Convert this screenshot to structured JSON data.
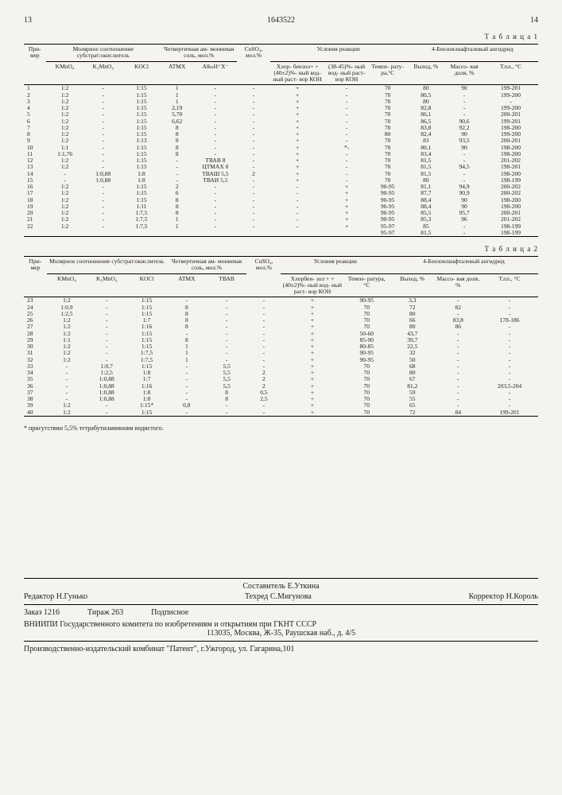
{
  "pageLeft": "13",
  "patent": "1643522",
  "pageRight": "14",
  "table1Label": "Т а б л и ц а  1",
  "table2Label": "Т а б л и ц а  2",
  "footnote": "* присутствии 5,5% тетрабутиламмония иодистого.",
  "t1": {
    "h_primer": "При-\nмер",
    "h_mol": "Молярное соотношение\nсубстрат:окислитель",
    "h_amm": "Четвертичная ам-\nмониевая соль,\nмол.%",
    "h_cuso4": "CuSO₄,\nмол.%",
    "h_cond": "Условия реакции",
    "h_prod": "4-Бензоилнафталевый ангидрид",
    "sh_kmno4": "KMnO₄",
    "sh_k2mno4": "K₂MnO₄",
    "sh_kocl": "KOCl",
    "sh_atmk": "АТМХ",
    "sh_alk": "AlkₙH⁺X⁻",
    "sh_c1": "Хлор-\nбензол+\n+(40±2)%-\nный вод-\nный раст-\nвор КОН",
    "sh_c2": "(38-45)%-\nный вод-\nный раст-\nвор КОН",
    "sh_temp": "Темпе-\nрату-\nра,°С",
    "sh_yield": "Выход,\n%",
    "sh_mass": "Массо-\nвая\nдоля,\n%",
    "sh_tpl": "Т.пл.,\n°С",
    "rows": [
      [
        "1",
        "1:2",
        "-",
        "1:15",
        "1",
        "-",
        "-",
        "+",
        "-",
        "70",
        "80",
        "90",
        "199-201"
      ],
      [
        "2",
        "1:2",
        "-",
        "1:15",
        "1",
        "-",
        "-",
        "+",
        "-",
        "70",
        "80,5",
        "-",
        "199-200"
      ],
      [
        "3",
        "1:2",
        "-",
        "1:15",
        "1",
        "-",
        "-",
        "+",
        "-",
        "70",
        "80",
        "-",
        "-"
      ],
      [
        "4",
        "1:2",
        "-",
        "1:15",
        "2,19",
        "-",
        "-",
        "+",
        "-",
        "70",
        "82,8",
        "-",
        "199-200"
      ],
      [
        "5",
        "1:2",
        "-",
        "1:15",
        "5,70",
        "-",
        "-",
        "+",
        "-",
        "70",
        "86,1",
        "-",
        "200-201"
      ],
      [
        "6",
        "1:2",
        "-",
        "1:15",
        "6,62",
        "-",
        "-",
        "+",
        "-",
        "70",
        "86,5",
        "90,6",
        "199-201"
      ],
      [
        "7",
        "1:2",
        "-",
        "1:15",
        "8",
        "-",
        "-",
        "+",
        "-",
        "70",
        "83,8",
        "92,2",
        "198-200"
      ],
      [
        "8",
        "1:2",
        "-",
        "1:15",
        "8",
        "-",
        "-",
        "+",
        "-",
        "80",
        "82,4",
        "90",
        "199-200"
      ],
      [
        "9",
        "1:2",
        "-",
        "1:13",
        "8",
        "-",
        "-",
        "+",
        "-",
        "70",
        "83",
        "93,5",
        "200-201"
      ],
      [
        "10",
        "1:1",
        "-",
        "1:15",
        "8",
        "-",
        "-",
        "+",
        "*-",
        "70",
        "80,1",
        "90",
        "198-200"
      ],
      [
        "11",
        "1:1,76",
        "-",
        "1:15",
        "8",
        "-",
        "-",
        "+",
        "-",
        "70",
        "83,4",
        "-",
        "198-200"
      ],
      [
        "12",
        "1:2",
        "-",
        "1:15",
        "-",
        "ТВАВ 8",
        "-",
        "+",
        "-",
        "70",
        "81,5",
        "-",
        "201-202"
      ],
      [
        "13",
        "1:2",
        "-",
        "1:15",
        "-",
        "ЦТМАХ 8",
        "-",
        "+",
        "-",
        "70",
        "81,5",
        "94,5",
        "198-201"
      ],
      [
        "14",
        "-",
        "1:0,88",
        "1:8",
        "-",
        "ТВАШ 5,5",
        "2",
        "+",
        "-",
        "70",
        "81,5",
        "-",
        "198-200"
      ],
      [
        "15",
        "-",
        "1:0,88",
        "1:8",
        "-",
        "ТВАИ 5,5",
        "-",
        "+",
        "-",
        "70",
        "80",
        "-",
        "198-199"
      ],
      [
        "16",
        "1:2",
        "-",
        "1:15",
        "2",
        "-",
        "-",
        "-",
        "+",
        "90-95",
        "81,1",
        "94,9",
        "200-202"
      ],
      [
        "17",
        "1:2",
        "-",
        "1:15",
        "6",
        "-",
        "-",
        "-",
        "+",
        "90-95",
        "87,7",
        "90,9",
        "200-202"
      ],
      [
        "18",
        "1:2",
        "-",
        "1:15",
        "8",
        "-",
        "-",
        "-",
        "+",
        "90-95",
        "88,4",
        "90",
        "198-200"
      ],
      [
        "19",
        "1:2",
        "-",
        "1:11",
        "8",
        "-",
        "-",
        "-",
        "+",
        "90-95",
        "88,4",
        "90",
        "198-200"
      ],
      [
        "20",
        "1:2",
        "-",
        "1:7,5",
        "8",
        "-",
        "-",
        "-",
        "+",
        "90-95",
        "85,5",
        "95,7",
        "200-201"
      ],
      [
        "21",
        "1:2",
        "-",
        "1:7,5",
        "1",
        "-",
        "-",
        "-",
        "+",
        "90-95",
        "85,3",
        "96",
        "201-202"
      ],
      [
        "22",
        "1:2",
        "-",
        "1:7,5",
        "1",
        "-",
        "-",
        "-",
        "+",
        "95-97",
        "85",
        "-",
        "198-199"
      ],
      [
        "",
        "",
        "",
        "",
        "",
        "",
        "",
        "",
        "",
        "95-97",
        "81,5",
        "-",
        "198-199"
      ]
    ]
  },
  "t2": {
    "h_primer": "При-\nмер",
    "h_mol": "Молярное соотношение\nсубстрат:окислитель",
    "h_amm": "Четвертичная ам-\nмониевая соль,\nмол.%",
    "h_cuso4": "CuSO₄,\nмол.%",
    "h_cond": "Условия реакции",
    "h_prod": "4-Бензоилнафталевый ангидрид",
    "sh_kmno4": "KMnO₄",
    "sh_k2mno4": "K₂MnO₄",
    "sh_kocl": "KOCl",
    "sh_atmk": "АТМХ",
    "sh_tvab": "ТВАВ",
    "sh_c1": "Хлорбен-\nзол +\n+(40±2)%-\nный вод-\nный раст-\nвор КОН",
    "sh_temp": "Темпе-\nратура,\n°С",
    "sh_yield": "Выход,\n%",
    "sh_mass": "Массо-\nвая\nдоля,\n%",
    "sh_tpl": "Т.пл.,\n°С",
    "rows": [
      [
        "23",
        "1:2",
        "-",
        "1:15",
        "-",
        "-",
        "-",
        "+",
        "90-95",
        "3,3",
        "-",
        "-"
      ],
      [
        "24",
        "1:0,9",
        "-",
        "1:15",
        "8",
        "-",
        "-",
        "+",
        "70",
        "72",
        "82",
        "-"
      ],
      [
        "25",
        "1:2,5",
        "-",
        "1:15",
        "8",
        "-",
        "-",
        "+",
        "70",
        "80",
        "-",
        "-"
      ],
      [
        "26",
        "1:2",
        "-",
        "1:7",
        "8",
        "-",
        "-",
        "+",
        "70",
        "66",
        "83,8",
        "178-186"
      ],
      [
        "27",
        "1:2",
        "-",
        "1:16",
        "8",
        "-",
        "-",
        "+",
        "70",
        "80",
        "86",
        "-"
      ],
      [
        "28",
        "1:2",
        "-",
        "1:15",
        "-",
        "-",
        "-",
        "+",
        "50-60",
        "43,7",
        "-",
        "-"
      ],
      [
        "29",
        "1:1",
        "-",
        "1:15",
        "8",
        "-",
        "-",
        "+",
        "85-90",
        "39,7",
        "-",
        "-"
      ],
      [
        "30",
        "1:2",
        "-",
        "1:15",
        "1",
        "-",
        "-",
        "+",
        "80-85",
        "22,5",
        "-",
        "-"
      ],
      [
        "31",
        "1:2",
        "-",
        "1:7,5",
        "1",
        "-",
        "-",
        "+",
        "90-95",
        "32",
        "-",
        "-"
      ],
      [
        "32",
        "1:2",
        "-",
        "1:7,5",
        "1",
        "-",
        "-",
        "+",
        "90-95",
        "50",
        "-",
        "-"
      ],
      [
        "33",
        "-",
        "1:0,7",
        "1:15",
        "-",
        "5,5",
        "-",
        "+",
        "70",
        "68",
        "-",
        "-"
      ],
      [
        "34",
        "-",
        "1:2,5",
        "1:8",
        "-",
        "5,5",
        "2",
        "+",
        "70",
        "80",
        "-",
        "-"
      ],
      [
        "35",
        "-",
        "1:0,88",
        "1:7",
        "-",
        "5,5",
        "2",
        "+",
        "70",
        "67",
        "-",
        "-"
      ],
      [
        "36",
        "-",
        "1:0,88",
        "1:16",
        "-",
        "5,5",
        "2",
        "+",
        "70",
        "81,2",
        "-",
        "203,5-204"
      ],
      [
        "37",
        "-",
        "1:0,88",
        "1:8",
        "-",
        "8",
        "0,5",
        "+",
        "70",
        "59",
        "-",
        "-"
      ],
      [
        "38",
        "-",
        "1:0,88",
        "1:8",
        "-",
        "8",
        "2,5",
        "+",
        "70",
        "55",
        "-",
        "-"
      ],
      [
        "39",
        "1:2",
        "-",
        "1:15*",
        "0,8",
        "-",
        "-",
        "+",
        "70",
        "65",
        "-",
        "-"
      ],
      [
        "40",
        "1:2",
        "-",
        "1:15",
        "-",
        "-",
        "-",
        "+",
        "70",
        "72",
        "84",
        "199-201"
      ]
    ]
  },
  "credits": {
    "composer": "Составитель Е.Уткина",
    "editor": "Редактор Н.Гунько",
    "tech": "Техред С.Мигунова",
    "corrector": "Корректор Н.Король",
    "order": "Заказ 1216",
    "tirazh": "Тираж 263",
    "subscript": "Подписное",
    "vniipi": "ВНИИПИ Государственного комитета по изобретениям и открытиям при ГКНТ СССР",
    "addr1": "113035, Москва, Ж-35, Раушская наб., д. 4/5",
    "prod": "Производственно-издательский комбинат \"Патент\", г.Ужгород, ул. Гагарина,101"
  }
}
